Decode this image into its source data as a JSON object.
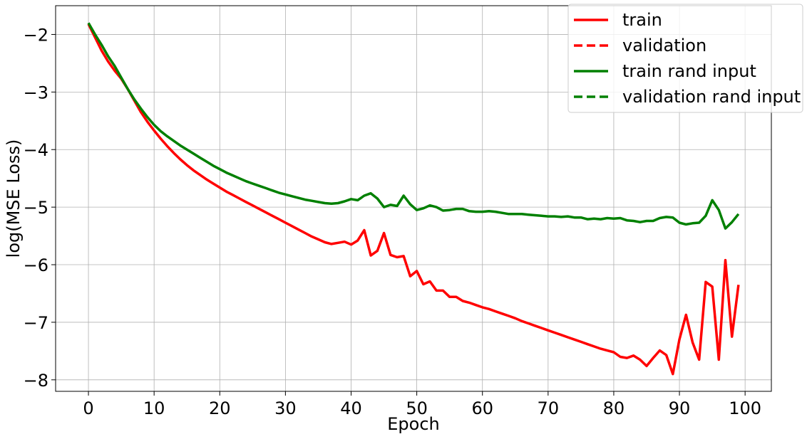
{
  "chart_data": {
    "type": "line",
    "title": "",
    "xlabel": "Epoch",
    "ylabel": "log(MSE Loss)",
    "xlim": [
      -5,
      104
    ],
    "ylim": [
      -8.2,
      -1.5
    ],
    "xticks": [
      0,
      10,
      20,
      30,
      40,
      50,
      60,
      70,
      80,
      90,
      100
    ],
    "yticks": [
      -2,
      -3,
      -4,
      -5,
      -6,
      -7,
      -8
    ],
    "xtick_labels": [
      "0",
      "10",
      "20",
      "30",
      "40",
      "50",
      "60",
      "70",
      "80",
      "90",
      "100"
    ],
    "ytick_labels": [
      "−2",
      "−3",
      "−4",
      "−5",
      "−6",
      "−7",
      "−8"
    ],
    "grid": true,
    "legend_position": "top-right",
    "series": [
      {
        "name": "train",
        "color": "#ff0000",
        "style": "solid",
        "x": [
          0,
          1,
          2,
          3,
          4,
          5,
          6,
          7,
          8,
          9,
          10,
          11,
          12,
          13,
          14,
          15,
          16,
          17,
          18,
          19,
          20,
          21,
          22,
          23,
          24,
          25,
          26,
          27,
          28,
          29,
          30,
          31,
          32,
          33,
          34,
          35,
          36,
          37,
          38,
          39,
          40,
          41,
          42,
          43,
          44,
          45,
          46,
          47,
          48,
          49,
          50,
          51,
          52,
          53,
          54,
          55,
          56,
          57,
          58,
          59,
          60,
          61,
          62,
          63,
          64,
          65,
          66,
          67,
          68,
          69,
          70,
          71,
          72,
          73,
          74,
          75,
          76,
          77,
          78,
          79,
          80,
          81,
          82,
          83,
          84,
          85,
          86,
          87,
          88,
          89,
          90,
          91,
          92,
          93,
          94,
          95,
          96,
          97,
          98,
          99
        ],
        "y": [
          -1.82,
          -2.05,
          -2.28,
          -2.47,
          -2.63,
          -2.77,
          -2.95,
          -3.15,
          -3.35,
          -3.52,
          -3.67,
          -3.81,
          -3.94,
          -4.06,
          -4.17,
          -4.27,
          -4.36,
          -4.44,
          -4.52,
          -4.59,
          -4.66,
          -4.73,
          -4.79,
          -4.85,
          -4.91,
          -4.97,
          -5.03,
          -5.09,
          -5.15,
          -5.21,
          -5.27,
          -5.33,
          -5.39,
          -5.45,
          -5.51,
          -5.56,
          -5.61,
          -5.64,
          -5.62,
          -5.6,
          -5.65,
          -5.58,
          -5.4,
          -5.84,
          -5.76,
          -5.45,
          -5.83,
          -5.87,
          -5.85,
          -6.2,
          -6.11,
          -6.34,
          -6.29,
          -6.45,
          -6.45,
          -6.56,
          -6.56,
          -6.63,
          -6.66,
          -6.7,
          -6.74,
          -6.77,
          -6.81,
          -6.85,
          -6.89,
          -6.93,
          -6.98,
          -7.02,
          -7.06,
          -7.1,
          -7.14,
          -7.18,
          -7.22,
          -7.26,
          -7.3,
          -7.34,
          -7.38,
          -7.42,
          -7.46,
          -7.49,
          -7.52,
          -7.6,
          -7.62,
          -7.58,
          -7.65,
          -7.76,
          -7.62,
          -7.49,
          -7.57,
          -7.9,
          -7.3,
          -6.87,
          -7.35,
          -7.65,
          -6.3,
          -6.38,
          -7.65,
          -5.92,
          -7.25,
          -6.35
        ]
      },
      {
        "name": "validation",
        "color": "#ff0000",
        "style": "dashed",
        "x": [],
        "y": []
      },
      {
        "name": "train rand input",
        "color": "#008000",
        "style": "solid",
        "x": [
          0,
          1,
          2,
          3,
          4,
          5,
          6,
          7,
          8,
          9,
          10,
          11,
          12,
          13,
          14,
          15,
          16,
          17,
          18,
          19,
          20,
          21,
          22,
          23,
          24,
          25,
          26,
          27,
          28,
          29,
          30,
          31,
          32,
          33,
          34,
          35,
          36,
          37,
          38,
          39,
          40,
          41,
          42,
          43,
          44,
          45,
          46,
          47,
          48,
          49,
          50,
          51,
          52,
          53,
          54,
          55,
          56,
          57,
          58,
          59,
          60,
          61,
          62,
          63,
          64,
          65,
          66,
          67,
          68,
          69,
          70,
          71,
          72,
          73,
          74,
          75,
          76,
          77,
          78,
          79,
          80,
          81,
          82,
          83,
          84,
          85,
          86,
          87,
          88,
          89,
          90,
          91,
          92,
          93,
          94,
          95,
          96,
          97,
          98,
          99
        ],
        "y": [
          -1.8,
          -2.0,
          -2.18,
          -2.38,
          -2.55,
          -2.75,
          -2.95,
          -3.13,
          -3.29,
          -3.44,
          -3.57,
          -3.68,
          -3.77,
          -3.85,
          -3.93,
          -4.0,
          -4.07,
          -4.14,
          -4.21,
          -4.28,
          -4.34,
          -4.4,
          -4.45,
          -4.5,
          -4.55,
          -4.59,
          -4.63,
          -4.67,
          -4.71,
          -4.75,
          -4.78,
          -4.81,
          -4.84,
          -4.87,
          -4.89,
          -4.91,
          -4.93,
          -4.94,
          -4.93,
          -4.9,
          -4.86,
          -4.88,
          -4.8,
          -4.76,
          -4.85,
          -5.0,
          -4.96,
          -4.98,
          -4.8,
          -4.95,
          -5.05,
          -5.02,
          -4.97,
          -5.0,
          -5.06,
          -5.05,
          -5.03,
          -5.03,
          -5.07,
          -5.08,
          -5.08,
          -5.07,
          -5.08,
          -5.1,
          -5.12,
          -5.12,
          -5.12,
          -5.13,
          -5.14,
          -5.15,
          -5.16,
          -5.16,
          -5.17,
          -5.16,
          -5.18,
          -5.18,
          -5.21,
          -5.2,
          -5.21,
          -5.19,
          -5.2,
          -5.19,
          -5.23,
          -5.24,
          -5.26,
          -5.24,
          -5.24,
          -5.19,
          -5.17,
          -5.18,
          -5.27,
          -5.3,
          -5.28,
          -5.27,
          -5.15,
          -4.88,
          -5.05,
          -5.37,
          -5.26,
          -5.12
        ]
      },
      {
        "name": "validation rand input",
        "color": "#008000",
        "style": "dashed",
        "x": [],
        "y": []
      }
    ]
  }
}
